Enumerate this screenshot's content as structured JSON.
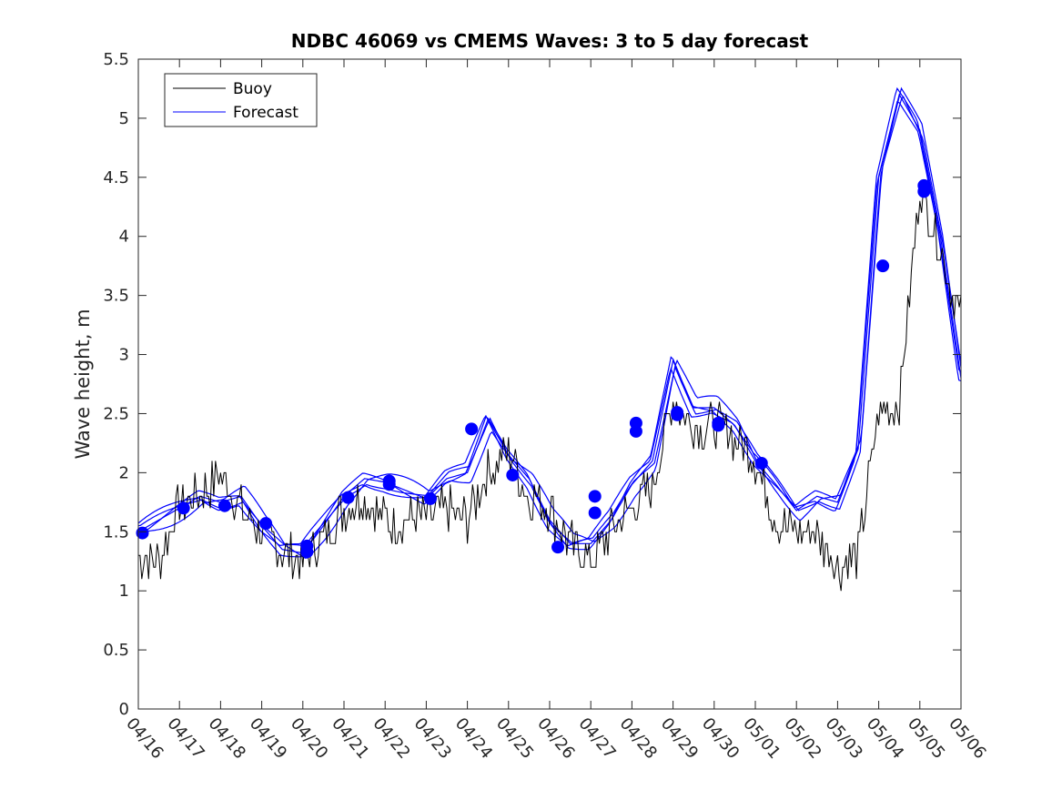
{
  "chart_data": {
    "type": "line",
    "title": "NDBC 46069 vs CMEMS Waves: 3 to 5 day forecast",
    "xlabel": "",
    "ylabel": "Wave height, m",
    "xlim": [
      "04/16",
      "05/06"
    ],
    "ylim": [
      0,
      5.5
    ],
    "yticks": [
      0,
      0.5,
      1,
      1.5,
      2,
      2.5,
      3,
      3.5,
      4,
      4.5,
      5,
      5.5
    ],
    "ytick_labels": [
      "0",
      "0.5",
      "1",
      "1.5",
      "2",
      "2.5",
      "3",
      "3.5",
      "4",
      "4.5",
      "5",
      "5.5"
    ],
    "xtick_labels": [
      "04/16",
      "04/17",
      "04/18",
      "04/19",
      "04/20",
      "04/21",
      "04/22",
      "04/23",
      "04/24",
      "04/25",
      "04/26",
      "04/27",
      "04/28",
      "04/29",
      "04/30",
      "05/01",
      "05/02",
      "05/03",
      "05/04",
      "05/05",
      "05/06"
    ],
    "grid": false,
    "legend_position": "top-left",
    "series": [
      {
        "name": "Buoy",
        "color": "#000000",
        "x": [
          0,
          0.5,
          1,
          1.5,
          2,
          2.5,
          3,
          3.5,
          4,
          4.5,
          5,
          5.5,
          6,
          6.5,
          7,
          7.5,
          8,
          8.5,
          9,
          9.5,
          10,
          10.5,
          11,
          11.5,
          12,
          12.5,
          13,
          13.5,
          14,
          14.5,
          15,
          15.5,
          16,
          16.5,
          17,
          17.5,
          18,
          18.5,
          19,
          19.5,
          20
        ],
        "y": [
          1.3,
          1.25,
          1.75,
          1.8,
          2.0,
          1.7,
          1.5,
          1.35,
          1.25,
          1.45,
          1.7,
          1.8,
          1.6,
          1.6,
          1.6,
          1.7,
          1.6,
          2.0,
          2.2,
          1.8,
          1.7,
          1.4,
          1.25,
          1.5,
          1.7,
          1.9,
          2.6,
          2.4,
          2.4,
          2.3,
          2.1,
          1.6,
          1.5,
          1.5,
          1.2,
          1.3,
          2.5,
          2.6,
          4.4,
          3.9,
          3.3
        ]
      },
      {
        "name": "Forecast",
        "color": "#0000ff",
        "x": [
          0,
          0.5,
          1,
          1.5,
          2,
          2.5,
          3,
          3.5,
          4,
          4.5,
          5,
          5.5,
          6,
          6.5,
          7,
          7.5,
          8,
          8.5,
          9,
          9.5,
          10,
          10.5,
          11,
          11.5,
          12,
          12.5,
          13,
          13.5,
          14,
          14.5,
          15,
          15.5,
          16,
          16.5,
          17,
          17.5,
          18,
          18.5,
          19,
          19.5,
          20
        ],
        "y": [
          1.5,
          1.6,
          1.7,
          1.8,
          1.75,
          1.8,
          1.55,
          1.35,
          1.32,
          1.55,
          1.8,
          1.95,
          1.92,
          1.85,
          1.78,
          1.95,
          2.0,
          2.45,
          2.15,
          1.95,
          1.6,
          1.4,
          1.4,
          1.6,
          1.9,
          2.1,
          2.95,
          2.55,
          2.55,
          2.4,
          2.1,
          1.9,
          1.68,
          1.8,
          1.75,
          2.2,
          4.5,
          5.2,
          4.9,
          4.0,
          2.8
        ]
      }
    ],
    "forecast_markers": {
      "x": [
        0.1,
        1.1,
        2.1,
        3.1,
        4.1,
        4.1,
        5.1,
        6.1,
        6.1,
        7.1,
        8.1,
        9.1,
        10.2,
        11.1,
        11.1,
        12.1,
        12.1,
        13.1,
        13.1,
        14.1,
        14.1,
        15.15,
        18.1,
        19.1,
        19.1
      ],
      "y": [
        1.49,
        1.7,
        1.72,
        1.57,
        1.38,
        1.33,
        1.79,
        1.93,
        1.9,
        1.78,
        2.37,
        1.98,
        1.37,
        1.8,
        1.66,
        2.42,
        2.35,
        2.51,
        2.49,
        2.42,
        2.4,
        2.08,
        3.75,
        4.43,
        4.38
      ]
    }
  }
}
